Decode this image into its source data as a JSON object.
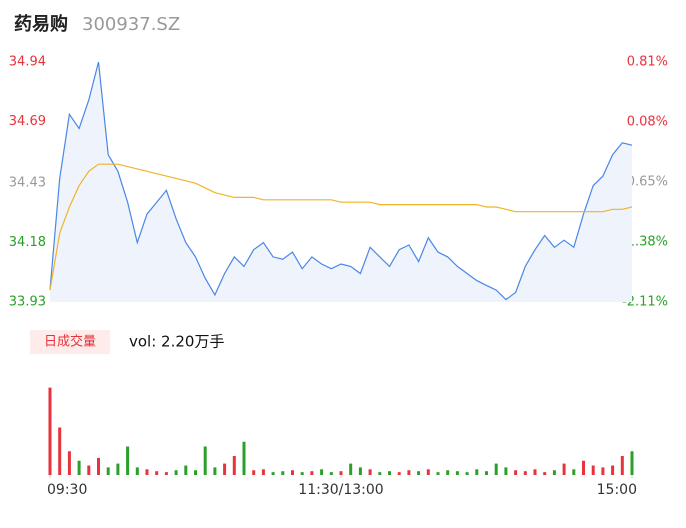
{
  "header": {
    "name": "药易购",
    "code": "300937.SZ"
  },
  "volume_panel": {
    "badge": "日成交量",
    "summary": "vol: 2.20万手"
  },
  "chart_data": {
    "type": "line",
    "x": [
      0,
      4,
      8,
      12,
      16,
      20,
      24,
      28,
      32,
      36,
      40,
      44,
      48,
      52,
      56,
      60,
      64,
      68,
      72,
      76,
      80,
      84,
      88,
      92,
      96,
      100,
      104,
      108,
      112,
      116,
      120,
      124,
      128,
      132,
      136,
      140,
      144,
      148,
      152,
      156,
      160,
      164,
      168,
      172,
      176,
      180,
      184,
      188,
      192,
      196,
      200,
      204,
      208,
      212,
      216,
      220,
      224,
      228,
      232,
      236,
      240
    ],
    "xlim": [
      0,
      240
    ],
    "xticks": [
      {
        "value": 0,
        "label": "09:30"
      },
      {
        "value": 120,
        "label": "11:30/13:00"
      },
      {
        "value": 240,
        "label": "15:00"
      }
    ],
    "ylim": [
      33.93,
      34.94
    ],
    "yticks": [
      34.94,
      34.69,
      34.43,
      34.18,
      33.93
    ],
    "y2lim": [
      -2.11,
      0.81
    ],
    "y2ticks": [
      {
        "value": 0.81,
        "label": "0.81%"
      },
      {
        "value": 0.08,
        "label": "0.08%"
      },
      {
        "value": -0.65,
        "label": "-0.65%"
      },
      {
        "value": -1.38,
        "label": "-1.38%"
      },
      {
        "value": -2.11,
        "label": "-2.11%"
      }
    ],
    "tick_colors": [
      "#e8323c",
      "#e8323c",
      "#999999",
      "#2aa02a",
      "#2aa02a"
    ],
    "series": [
      {
        "color": "#4a86e8",
        "fill": "#eef3fc",
        "values": [
          33.98,
          34.45,
          34.72,
          34.66,
          34.78,
          34.94,
          34.55,
          34.48,
          34.35,
          34.18,
          34.3,
          34.35,
          34.4,
          34.28,
          34.18,
          34.12,
          34.03,
          33.96,
          34.05,
          34.12,
          34.08,
          34.15,
          34.18,
          34.12,
          34.11,
          34.14,
          34.07,
          34.12,
          34.09,
          34.07,
          34.09,
          34.08,
          34.05,
          34.16,
          34.12,
          34.08,
          34.15,
          34.17,
          34.1,
          34.2,
          34.14,
          34.12,
          34.08,
          34.05,
          34.02,
          34.0,
          33.98,
          33.94,
          33.97,
          34.08,
          34.15,
          34.21,
          34.16,
          34.19,
          34.16,
          34.3,
          34.42,
          34.46,
          34.55,
          34.6,
          34.59
        ]
      },
      {
        "color": "#f0b429",
        "values": [
          33.98,
          34.22,
          34.33,
          34.42,
          34.48,
          34.51,
          34.51,
          34.51,
          34.5,
          34.49,
          34.48,
          34.47,
          34.46,
          34.45,
          34.44,
          34.43,
          34.41,
          34.39,
          34.38,
          34.37,
          34.37,
          34.37,
          34.36,
          34.36,
          34.36,
          34.36,
          34.36,
          34.36,
          34.36,
          34.36,
          34.35,
          34.35,
          34.35,
          34.35,
          34.34,
          34.34,
          34.34,
          34.34,
          34.34,
          34.34,
          34.34,
          34.34,
          34.34,
          34.34,
          34.34,
          34.33,
          34.33,
          34.32,
          34.31,
          34.31,
          34.31,
          34.31,
          34.31,
          34.31,
          34.31,
          34.31,
          34.31,
          34.31,
          34.32,
          34.32,
          34.33
        ]
      }
    ],
    "volume": {
      "vlim": [
        0,
        100
      ],
      "up_color": "#e8323c",
      "down_color": "#2aa02a",
      "values": [
        92,
        50,
        25,
        15,
        10,
        18,
        8,
        12,
        30,
        8,
        6,
        4,
        3,
        5,
        10,
        5,
        30,
        8,
        12,
        20,
        35,
        5,
        6,
        3,
        4,
        5,
        3,
        4,
        6,
        3,
        4,
        12,
        8,
        6,
        3,
        4,
        3,
        5,
        4,
        6,
        3,
        5,
        4,
        3,
        6,
        4,
        12,
        8,
        5,
        4,
        6,
        3,
        5,
        12,
        6,
        15,
        10,
        8,
        10,
        20,
        25
      ]
    }
  }
}
